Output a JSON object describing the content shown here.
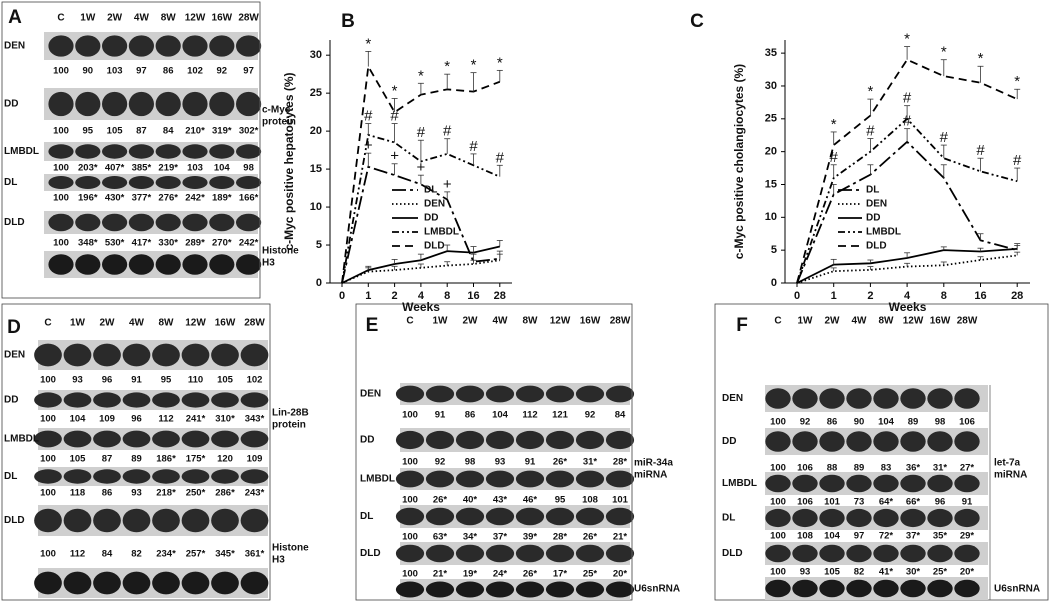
{
  "chart_data": [
    {
      "type": "line",
      "label": "B",
      "ylabel": "c-Myc positive hepatocytes (%)",
      "xlabel": "Weeks",
      "categories": [
        "0",
        "1",
        "2",
        "4",
        "8",
        "16",
        "28"
      ],
      "ylim": [
        0,
        32
      ],
      "yticks": [
        0,
        5,
        10,
        15,
        20,
        25,
        30
      ],
      "series": [
        {
          "name": "DL",
          "color": "#000000",
          "style": "long-dash-dot",
          "values": [
            0,
            15.3,
            14.2,
            13,
            11,
            2.8,
            3.2
          ],
          "errors": [
            0,
            1.8,
            1.5,
            1.2,
            1,
            1,
            1
          ],
          "point_labels": [
            null,
            "+",
            "+",
            "+",
            "+",
            null,
            null
          ]
        },
        {
          "name": "DEN",
          "color": "#000000",
          "style": "dotted",
          "values": [
            0,
            1.5,
            1.7,
            2,
            2.3,
            2.5,
            3
          ],
          "errors": [
            0,
            0.5,
            0.5,
            0.5,
            0.5,
            0.5,
            0.8
          ],
          "point_labels": [
            null,
            null,
            null,
            null,
            null,
            null,
            null
          ]
        },
        {
          "name": "DD",
          "color": "#000000",
          "style": "solid",
          "values": [
            0,
            1.7,
            2.5,
            3,
            4.2,
            4,
            4.8
          ],
          "errors": [
            0,
            0.5,
            0.6,
            0.8,
            0.8,
            0.8,
            0.8
          ],
          "point_labels": [
            null,
            null,
            null,
            null,
            null,
            null,
            null
          ]
        },
        {
          "name": "LMBDL",
          "color": "#000000",
          "style": "dash-dot",
          "values": [
            0,
            19.5,
            18.5,
            16,
            17,
            15.5,
            14
          ],
          "errors": [
            0,
            1.5,
            2.5,
            2.8,
            2,
            1.5,
            1.5
          ],
          "point_labels": [
            null,
            "#",
            "#",
            "#",
            "#",
            "#",
            "#"
          ]
        },
        {
          "name": "DLD",
          "color": "#000000",
          "style": "dashed",
          "values": [
            0,
            28.5,
            22.5,
            24.8,
            25.5,
            25.2,
            26.5
          ],
          "errors": [
            0,
            2,
            1.8,
            1.5,
            2,
            2.5,
            1.5
          ],
          "point_labels": [
            null,
            "*",
            "*",
            "*",
            "*",
            "*",
            "*"
          ]
        }
      ]
    },
    {
      "type": "line",
      "label": "C",
      "ylabel": "c-Myc positive cholangiocytes (%)",
      "xlabel": "Weeks",
      "categories": [
        "0",
        "1",
        "2",
        "4",
        "8",
        "16",
        "28"
      ],
      "ylim": [
        0,
        37
      ],
      "yticks": [
        0,
        5,
        10,
        15,
        20,
        25,
        30,
        35
      ],
      "series": [
        {
          "name": "DL",
          "color": "#000000",
          "style": "long-dash-dot",
          "values": [
            0,
            13.5,
            16.5,
            21.5,
            16,
            6.5,
            5
          ],
          "errors": [
            0,
            1.5,
            1.5,
            2,
            2,
            1,
            1
          ],
          "point_labels": [
            null,
            null,
            null,
            "#",
            null,
            null,
            null
          ]
        },
        {
          "name": "DEN",
          "color": "#000000",
          "style": "dotted",
          "values": [
            0,
            1.8,
            2,
            2.5,
            2.7,
            3.5,
            4.2
          ],
          "errors": [
            0,
            0.5,
            0.5,
            0.5,
            0.5,
            0.5,
            0.5
          ],
          "point_labels": [
            null,
            null,
            null,
            null,
            null,
            null,
            null
          ]
        },
        {
          "name": "DD",
          "color": "#000000",
          "style": "solid",
          "values": [
            0,
            2.8,
            3,
            3.8,
            5,
            4.8,
            5.2
          ],
          "errors": [
            0,
            0.8,
            0.5,
            0.8,
            0.5,
            0.5,
            0.5
          ],
          "point_labels": [
            null,
            null,
            null,
            null,
            null,
            null,
            null
          ]
        },
        {
          "name": "LMBDL",
          "color": "#000000",
          "style": "dash-dot",
          "values": [
            0,
            16,
            20,
            25,
            19,
            17,
            15.5
          ],
          "errors": [
            0,
            2,
            2,
            2,
            2,
            2,
            2
          ],
          "point_labels": [
            null,
            "#",
            "#",
            "#",
            "#",
            "#",
            "#"
          ]
        },
        {
          "name": "DLD",
          "color": "#000000",
          "style": "dashed",
          "values": [
            0,
            21,
            25.5,
            34,
            31.5,
            30.5,
            28
          ],
          "errors": [
            0,
            2,
            2.5,
            2,
            2.5,
            2.5,
            1.5
          ],
          "point_labels": [
            null,
            "*",
            "*",
            "*",
            "*",
            "*",
            "*"
          ]
        }
      ]
    }
  ],
  "blots": [
    {
      "label": "A",
      "lanes": [
        "C",
        "1W",
        "2W",
        "4W",
        "8W",
        "12W",
        "16W",
        "28W"
      ],
      "target": [
        "c-Myc",
        "protein"
      ],
      "control": [
        "Histone",
        "H3"
      ],
      "rows": [
        {
          "name": "DEN",
          "values": [
            "100",
            "90",
            "103",
            "97",
            "86",
            "102",
            "92",
            "97"
          ]
        },
        {
          "name": "DD",
          "values": [
            "100",
            "95",
            "105",
            "87",
            "84",
            "210*",
            "319*",
            "302*"
          ]
        },
        {
          "name": "LMBDL",
          "values": [
            "100",
            "203*",
            "407*",
            "385*",
            "219*",
            "103",
            "104",
            "98"
          ]
        },
        {
          "name": "DL",
          "values": [
            "100",
            "196*",
            "430*",
            "377*",
            "276*",
            "242*",
            "189*",
            "166*"
          ]
        },
        {
          "name": "DLD",
          "values": [
            "100",
            "348*",
            "530*",
            "417*",
            "330*",
            "289*",
            "270*",
            "242*"
          ]
        }
      ]
    },
    {
      "label": "D",
      "lanes": [
        "C",
        "1W",
        "2W",
        "4W",
        "8W",
        "12W",
        "16W",
        "28W"
      ],
      "target": [
        "Lin-28B",
        "protein"
      ],
      "control": [
        "Histone",
        "H3"
      ],
      "rows": [
        {
          "name": "DEN",
          "values": [
            "100",
            "93",
            "96",
            "91",
            "95",
            "110",
            "105",
            "102"
          ]
        },
        {
          "name": "DD",
          "values": [
            "100",
            "104",
            "109",
            "96",
            "112",
            "241*",
            "310*",
            "343*"
          ]
        },
        {
          "name": "LMBDL",
          "values": [
            "100",
            "105",
            "87",
            "89",
            "186*",
            "175*",
            "120",
            "109"
          ]
        },
        {
          "name": "DL",
          "values": [
            "100",
            "118",
            "86",
            "93",
            "218*",
            "250*",
            "286*",
            "243*"
          ]
        },
        {
          "name": "DLD",
          "values": [
            "100",
            "112",
            "84",
            "82",
            "234*",
            "257*",
            "345*",
            "361*"
          ]
        }
      ]
    },
    {
      "label": "E",
      "lanes": [
        "C",
        "1W",
        "2W",
        "4W",
        "8W",
        "12W",
        "16W",
        "28W"
      ],
      "target": [
        "miR-34a",
        "miRNA"
      ],
      "control": [
        "U6snRNA"
      ],
      "rows": [
        {
          "name": "DEN",
          "values": [
            "100",
            "91",
            "86",
            "104",
            "112",
            "121",
            "92",
            "84"
          ]
        },
        {
          "name": "DD",
          "values": [
            "100",
            "92",
            "98",
            "93",
            "91",
            "26*",
            "31*",
            "28*"
          ]
        },
        {
          "name": "LMBDL",
          "values": [
            "100",
            "26*",
            "40*",
            "43*",
            "46*",
            "95",
            "108",
            "101"
          ]
        },
        {
          "name": "DL",
          "values": [
            "100",
            "63*",
            "34*",
            "37*",
            "39*",
            "28*",
            "26*",
            "21*"
          ]
        },
        {
          "name": "DLD",
          "values": [
            "100",
            "21*",
            "19*",
            "24*",
            "26*",
            "17*",
            "25*",
            "20*"
          ]
        }
      ]
    },
    {
      "label": "F",
      "lanes": [
        "C",
        "1W",
        "2W",
        "4W",
        "8W",
        "12W",
        "16W",
        "28W"
      ],
      "target": [
        "let-7a",
        "miRNA"
      ],
      "control": [
        "U6snRNA"
      ],
      "rows": [
        {
          "name": "DEN",
          "values": [
            "100",
            "92",
            "86",
            "90",
            "104",
            "89",
            "98",
            "106"
          ]
        },
        {
          "name": "DD",
          "values": [
            "100",
            "106",
            "88",
            "89",
            "83",
            "36*",
            "31*",
            "27*"
          ]
        },
        {
          "name": "LMBDL",
          "values": [
            "100",
            "106",
            "101",
            "73",
            "64*",
            "66*",
            "96",
            "91"
          ]
        },
        {
          "name": "DL",
          "values": [
            "100",
            "108",
            "104",
            "97",
            "72*",
            "37*",
            "35*",
            "29*"
          ]
        },
        {
          "name": "DLD",
          "values": [
            "100",
            "93",
            "105",
            "82",
            "41*",
            "30*",
            "25*",
            "20*"
          ]
        }
      ]
    }
  ]
}
